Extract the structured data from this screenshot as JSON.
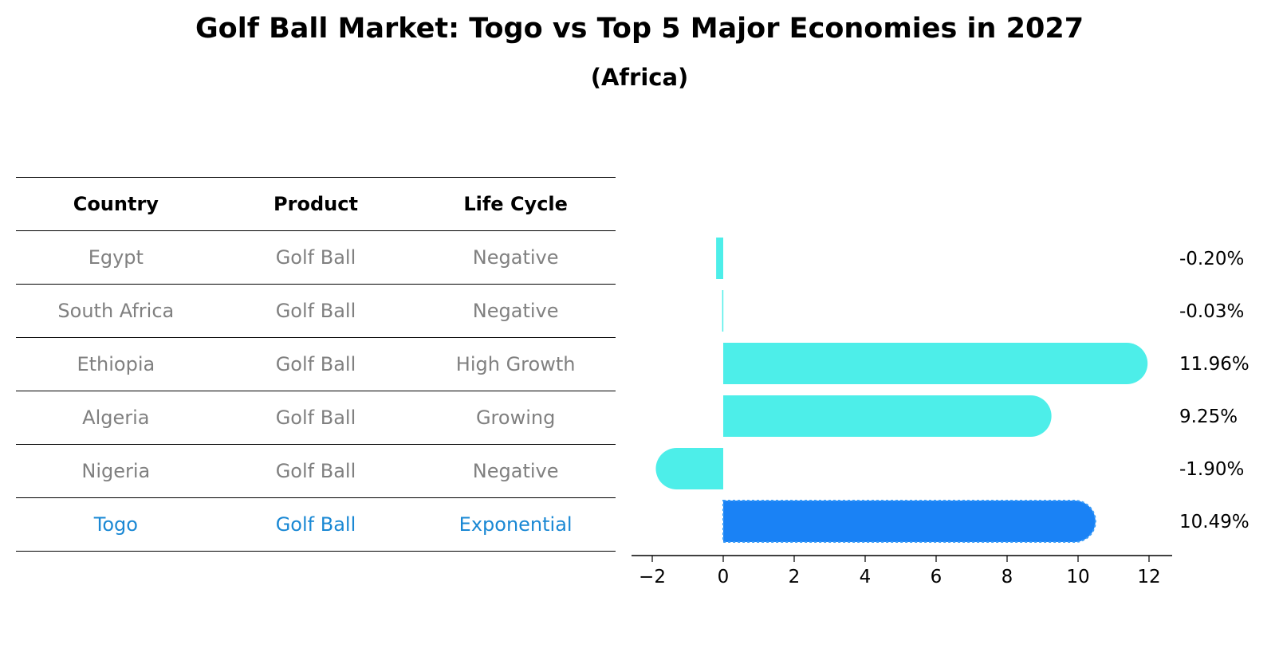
{
  "title": "Golf Ball Market: Togo vs Top 5 Major Economies in 2027",
  "subtitle": "(Africa)",
  "table": {
    "headers": [
      "Country",
      "Product",
      "Life Cycle"
    ],
    "rows": [
      {
        "country": "Egypt",
        "product": "Golf Ball",
        "life_cycle": "Negative"
      },
      {
        "country": "South Africa",
        "product": "Golf Ball",
        "life_cycle": "Negative"
      },
      {
        "country": "Ethiopia",
        "product": "Golf Ball",
        "life_cycle": "High Growth"
      },
      {
        "country": "Algeria",
        "product": "Golf Ball",
        "life_cycle": "Growing"
      },
      {
        "country": "Nigeria",
        "product": "Golf Ball",
        "life_cycle": "Negative"
      },
      {
        "country": "Togo",
        "product": "Golf Ball",
        "life_cycle": "Exponential"
      }
    ]
  },
  "chart_data": {
    "type": "bar",
    "orientation": "horizontal",
    "categories": [
      "Egypt",
      "South Africa",
      "Ethiopia",
      "Algeria",
      "Nigeria",
      "Togo"
    ],
    "values": [
      -0.2,
      -0.03,
      11.96,
      9.25,
      -1.9,
      10.49
    ],
    "value_labels": [
      "-0.20%",
      "-0.03%",
      "11.96%",
      "9.25%",
      "-1.90%",
      "10.49%"
    ],
    "xlim": [
      -2.5,
      12.7
    ],
    "xticks": [
      -2,
      0,
      2,
      4,
      6,
      8,
      10,
      12
    ],
    "xtick_labels": [
      "−2",
      "0",
      "2",
      "4",
      "6",
      "8",
      "10",
      "12"
    ],
    "highlight": "Togo",
    "colors": {
      "default": "#4deee9",
      "highlight": "#1a82f5",
      "highlight_text": "#1a88d4",
      "muted_text": "#808080"
    }
  }
}
